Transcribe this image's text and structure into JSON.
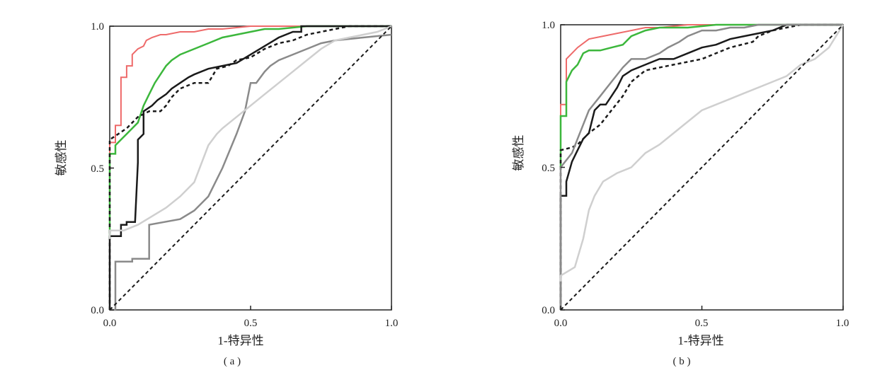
{
  "figure": {
    "colors": {
      "red": "#ee6a6a",
      "green": "#3cb73c",
      "black": "#1a1a1a",
      "dashed_black": "#1a1a1a",
      "gray": "#8a8a8a",
      "light_gray": "#cfcfcf",
      "diagonal": "#1a1a1a",
      "frame": "#222222"
    }
  },
  "chart_data": [
    {
      "type": "line",
      "panel_label": "( a )",
      "xlabel": "1-特异性",
      "ylabel": "敏感性",
      "xlim": [
        0,
        1
      ],
      "ylim": [
        0,
        1
      ],
      "xticks": [
        "0.0",
        "0.5",
        "1.0"
      ],
      "yticks": [
        "0.0",
        "0.5",
        "1.0"
      ],
      "grid": false,
      "series": [
        {
          "color": "red",
          "style": "solid",
          "width": 2,
          "x": [
            0.0,
            0.0,
            0.02,
            0.02,
            0.04,
            0.04,
            0.06,
            0.06,
            0.08,
            0.08,
            0.1,
            0.12,
            0.13,
            0.15,
            0.18,
            0.2,
            0.25,
            0.3,
            0.35,
            0.4,
            0.5,
            0.55,
            0.65,
            0.7,
            0.8,
            1.0
          ],
          "y": [
            0.0,
            0.59,
            0.59,
            0.65,
            0.65,
            0.82,
            0.82,
            0.86,
            0.86,
            0.9,
            0.92,
            0.93,
            0.95,
            0.96,
            0.97,
            0.97,
            0.98,
            0.98,
            0.99,
            0.99,
            1.0,
            1.0,
            1.0,
            1.0,
            1.0,
            1.0
          ]
        },
        {
          "color": "green",
          "style": "solid",
          "width": 2.5,
          "x": [
            0.0,
            0.0,
            0.02,
            0.02,
            0.04,
            0.06,
            0.08,
            0.1,
            0.12,
            0.14,
            0.16,
            0.18,
            0.2,
            0.22,
            0.25,
            0.3,
            0.35,
            0.4,
            0.45,
            0.5,
            0.55,
            0.6,
            0.7,
            1.0
          ],
          "y": [
            0.25,
            0.55,
            0.55,
            0.58,
            0.6,
            0.62,
            0.64,
            0.66,
            0.72,
            0.76,
            0.8,
            0.83,
            0.86,
            0.88,
            0.9,
            0.92,
            0.94,
            0.96,
            0.97,
            0.98,
            0.99,
            0.99,
            1.0,
            1.0
          ]
        },
        {
          "color": "black",
          "style": "solid",
          "width": 2.5,
          "x": [
            0.0,
            0.0,
            0.04,
            0.04,
            0.06,
            0.06,
            0.09,
            0.1,
            0.1,
            0.12,
            0.12,
            0.15,
            0.17,
            0.2,
            0.22,
            0.25,
            0.28,
            0.3,
            0.35,
            0.4,
            0.45,
            0.5,
            0.55,
            0.6,
            0.65,
            0.68,
            0.68,
            0.75,
            1.0
          ],
          "y": [
            0.0,
            0.26,
            0.26,
            0.3,
            0.3,
            0.31,
            0.31,
            0.52,
            0.6,
            0.62,
            0.7,
            0.72,
            0.74,
            0.76,
            0.78,
            0.8,
            0.82,
            0.83,
            0.85,
            0.86,
            0.87,
            0.9,
            0.93,
            0.96,
            0.98,
            0.98,
            1.0,
            1.0,
            1.0
          ]
        },
        {
          "color": "dashed_black",
          "style": "dashed",
          "width": 2.5,
          "x": [
            0.0,
            0.0,
            0.06,
            0.1,
            0.14,
            0.18,
            0.2,
            0.22,
            0.25,
            0.3,
            0.35,
            0.38,
            0.42,
            0.45,
            0.5,
            0.55,
            0.6,
            0.65,
            0.7,
            0.75,
            0.8,
            0.85,
            0.9,
            1.0
          ],
          "y": [
            0.0,
            0.6,
            0.64,
            0.68,
            0.7,
            0.7,
            0.72,
            0.75,
            0.78,
            0.8,
            0.8,
            0.85,
            0.86,
            0.88,
            0.89,
            0.92,
            0.94,
            0.95,
            0.97,
            0.98,
            0.99,
            1.0,
            1.0,
            1.0
          ]
        },
        {
          "color": "gray",
          "style": "solid",
          "width": 2.5,
          "x": [
            0.0,
            0.02,
            0.02,
            0.08,
            0.08,
            0.14,
            0.14,
            0.25,
            0.3,
            0.35,
            0.4,
            0.45,
            0.48,
            0.5,
            0.52,
            0.55,
            0.57,
            0.6,
            0.65,
            0.7,
            0.75,
            0.8,
            0.9,
            1.0
          ],
          "y": [
            0.0,
            0.0,
            0.17,
            0.17,
            0.18,
            0.18,
            0.3,
            0.32,
            0.35,
            0.4,
            0.5,
            0.62,
            0.7,
            0.8,
            0.8,
            0.84,
            0.86,
            0.88,
            0.9,
            0.92,
            0.94,
            0.95,
            0.96,
            0.97
          ]
        },
        {
          "color": "light_gray",
          "style": "solid",
          "width": 2.5,
          "x": [
            0.0,
            0.0,
            0.05,
            0.1,
            0.15,
            0.2,
            0.25,
            0.3,
            0.35,
            0.38,
            0.4,
            0.45,
            0.5,
            0.55,
            0.6,
            0.65,
            0.7,
            0.75,
            0.8,
            0.85,
            0.9,
            0.95,
            1.0
          ],
          "y": [
            0.25,
            0.28,
            0.28,
            0.3,
            0.33,
            0.36,
            0.4,
            0.45,
            0.58,
            0.62,
            0.64,
            0.68,
            0.72,
            0.76,
            0.8,
            0.84,
            0.88,
            0.92,
            0.95,
            0.96,
            0.97,
            0.98,
            1.0
          ]
        },
        {
          "color": "diagonal",
          "style": "dashed",
          "width": 2,
          "x": [
            0.0,
            1.0
          ],
          "y": [
            0.0,
            1.0
          ]
        }
      ]
    },
    {
      "type": "line",
      "panel_label": "( b )",
      "xlabel": "1-特异性",
      "ylabel": "敏感性",
      "xlim": [
        0,
        1
      ],
      "ylim": [
        0,
        1
      ],
      "xticks": [
        "0.0",
        "0.5",
        "1.0"
      ],
      "yticks": [
        "0.0",
        "0.5",
        "1.0"
      ],
      "grid": false,
      "series": [
        {
          "color": "red",
          "style": "solid",
          "width": 2,
          "x": [
            0.0,
            0.0,
            0.02,
            0.02,
            0.04,
            0.06,
            0.1,
            0.15,
            0.2,
            0.25,
            0.3,
            0.35,
            0.45,
            0.55,
            0.65,
            0.75,
            1.0
          ],
          "y": [
            0.0,
            0.72,
            0.72,
            0.88,
            0.9,
            0.92,
            0.95,
            0.96,
            0.97,
            0.98,
            0.99,
            0.99,
            1.0,
            1.0,
            1.0,
            1.0,
            1.0
          ]
        },
        {
          "color": "green",
          "style": "solid",
          "width": 2.5,
          "x": [
            0.0,
            0.0,
            0.02,
            0.02,
            0.04,
            0.06,
            0.08,
            0.1,
            0.14,
            0.18,
            0.22,
            0.25,
            0.3,
            0.35,
            0.45,
            0.55,
            0.65,
            0.75,
            1.0
          ],
          "y": [
            0.5,
            0.68,
            0.68,
            0.8,
            0.84,
            0.86,
            0.9,
            0.91,
            0.91,
            0.92,
            0.93,
            0.96,
            0.98,
            0.99,
            0.99,
            1.0,
            1.0,
            1.0,
            1.0
          ]
        },
        {
          "color": "black",
          "style": "solid",
          "width": 2.5,
          "x": [
            0.0,
            0.0,
            0.02,
            0.02,
            0.04,
            0.06,
            0.08,
            0.1,
            0.12,
            0.14,
            0.16,
            0.18,
            0.2,
            0.22,
            0.25,
            0.3,
            0.35,
            0.4,
            0.45,
            0.5,
            0.55,
            0.6,
            0.65,
            0.7,
            0.75,
            0.8,
            0.85,
            1.0
          ],
          "y": [
            0.0,
            0.4,
            0.4,
            0.45,
            0.52,
            0.56,
            0.6,
            0.62,
            0.7,
            0.72,
            0.72,
            0.75,
            0.78,
            0.82,
            0.84,
            0.86,
            0.88,
            0.88,
            0.9,
            0.92,
            0.93,
            0.95,
            0.96,
            0.97,
            0.98,
            1.0,
            1.0,
            1.0
          ]
        },
        {
          "color": "dashed_black",
          "style": "dashed",
          "width": 2.5,
          "x": [
            0.0,
            0.0,
            0.04,
            0.06,
            0.08,
            0.1,
            0.14,
            0.18,
            0.22,
            0.25,
            0.3,
            0.4,
            0.5,
            0.6,
            0.68,
            0.7,
            0.75,
            0.8,
            0.85,
            1.0
          ],
          "y": [
            0.0,
            0.56,
            0.57,
            0.58,
            0.6,
            0.62,
            0.65,
            0.7,
            0.75,
            0.8,
            0.84,
            0.86,
            0.88,
            0.92,
            0.94,
            0.96,
            0.98,
            0.99,
            1.0,
            1.0
          ]
        },
        {
          "color": "gray",
          "style": "solid",
          "width": 2.5,
          "x": [
            0.0,
            0.0,
            0.04,
            0.06,
            0.08,
            0.1,
            0.14,
            0.18,
            0.22,
            0.25,
            0.3,
            0.35,
            0.38,
            0.42,
            0.45,
            0.5,
            0.55,
            0.6,
            0.65,
            0.7,
            0.75,
            1.0
          ],
          "y": [
            0.0,
            0.5,
            0.55,
            0.6,
            0.65,
            0.7,
            0.75,
            0.8,
            0.85,
            0.88,
            0.88,
            0.9,
            0.92,
            0.94,
            0.96,
            0.98,
            0.98,
            0.99,
            0.99,
            1.0,
            1.0,
            1.0
          ]
        },
        {
          "color": "light_gray",
          "style": "solid",
          "width": 2.5,
          "x": [
            0.0,
            0.0,
            0.05,
            0.08,
            0.1,
            0.12,
            0.15,
            0.2,
            0.25,
            0.3,
            0.35,
            0.4,
            0.45,
            0.5,
            0.55,
            0.6,
            0.65,
            0.7,
            0.75,
            0.8,
            0.85,
            0.9,
            0.95,
            1.0
          ],
          "y": [
            0.1,
            0.12,
            0.15,
            0.25,
            0.35,
            0.4,
            0.45,
            0.48,
            0.5,
            0.55,
            0.58,
            0.62,
            0.66,
            0.7,
            0.72,
            0.74,
            0.76,
            0.78,
            0.8,
            0.82,
            0.86,
            0.88,
            0.92,
            1.0
          ]
        },
        {
          "color": "diagonal",
          "style": "dashed",
          "width": 2,
          "x": [
            0.0,
            1.0
          ],
          "y": [
            0.0,
            1.0
          ]
        }
      ]
    }
  ]
}
